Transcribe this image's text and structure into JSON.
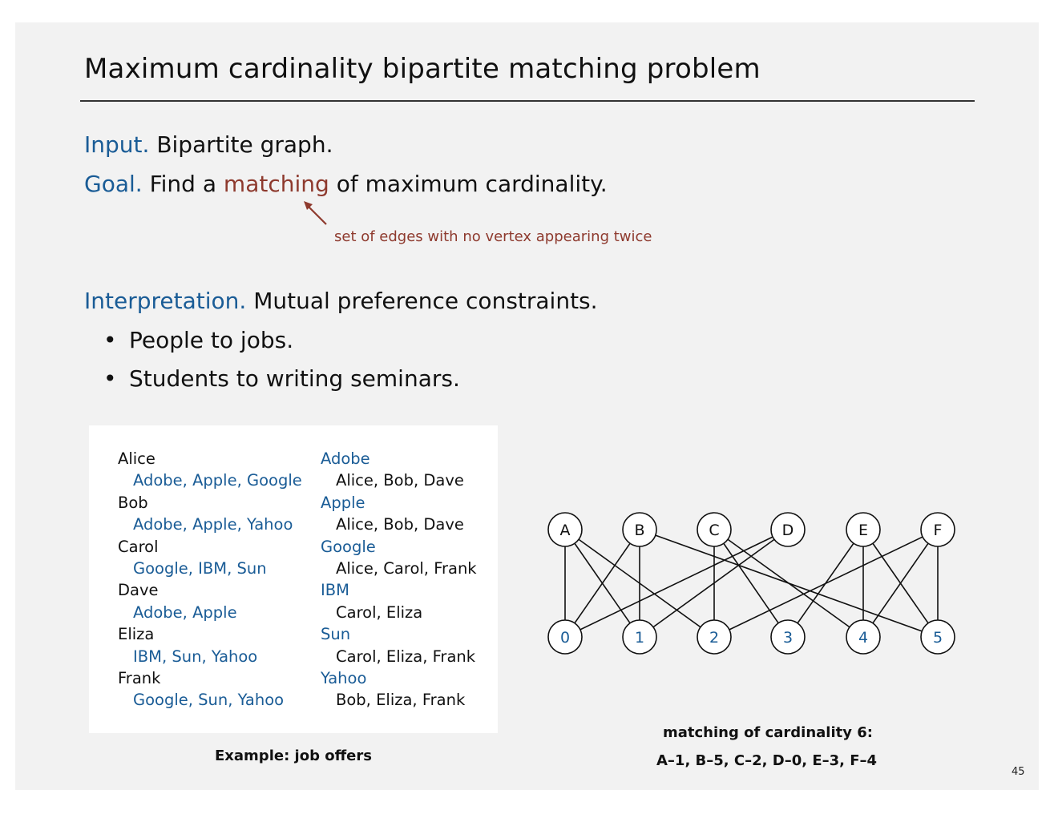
{
  "slide": {
    "title": "Maximum cardinality bipartite matching problem",
    "input_label": "Input.",
    "input_text": "Bipartite graph.",
    "goal_label": "Goal.",
    "goal_pre": "Find a",
    "goal_highlight": "matching",
    "goal_post": "of maximum cardinality.",
    "matching_note": "set of edges with no vertex appearing twice",
    "interp_label": "Interpretation.",
    "interp_text": "Mutual preference constraints.",
    "bullets": [
      "People to jobs.",
      "Students to writing seminars."
    ],
    "page_number": "45"
  },
  "example": {
    "people": [
      {
        "name": "Alice",
        "prefs": "Adobe, Apple, Google"
      },
      {
        "name": "Bob",
        "prefs": "Adobe, Apple, Yahoo"
      },
      {
        "name": "Carol",
        "prefs": "Google, IBM, Sun"
      },
      {
        "name": "Dave",
        "prefs": "Adobe, Apple"
      },
      {
        "name": "Eliza",
        "prefs": "IBM, Sun, Yahoo"
      },
      {
        "name": "Frank",
        "prefs": "Google, Sun, Yahoo"
      }
    ],
    "companies": [
      {
        "name": "Adobe",
        "prefs": "Alice, Bob, Dave"
      },
      {
        "name": "Apple",
        "prefs": "Alice, Bob, Dave"
      },
      {
        "name": "Google",
        "prefs": "Alice, Carol, Frank"
      },
      {
        "name": "IBM",
        "prefs": "Carol, Eliza"
      },
      {
        "name": "Sun",
        "prefs": "Carol, Eliza, Frank"
      },
      {
        "name": "Yahoo",
        "prefs": "Bob, Eliza, Frank"
      }
    ],
    "caption": "Example: job offers"
  },
  "graph": {
    "top_nodes": [
      "A",
      "B",
      "C",
      "D",
      "E",
      "F"
    ],
    "bottom_nodes": [
      "0",
      "1",
      "2",
      "3",
      "4",
      "5"
    ],
    "edges": [
      [
        "A",
        "0"
      ],
      [
        "A",
        "1"
      ],
      [
        "A",
        "2"
      ],
      [
        "B",
        "0"
      ],
      [
        "B",
        "1"
      ],
      [
        "B",
        "5"
      ],
      [
        "C",
        "2"
      ],
      [
        "C",
        "3"
      ],
      [
        "C",
        "4"
      ],
      [
        "D",
        "0"
      ],
      [
        "D",
        "1"
      ],
      [
        "E",
        "3"
      ],
      [
        "E",
        "4"
      ],
      [
        "E",
        "5"
      ],
      [
        "F",
        "2"
      ],
      [
        "F",
        "4"
      ],
      [
        "F",
        "5"
      ]
    ],
    "colors": {
      "top_label": "#111111",
      "bottom_label": "#1a5c96"
    },
    "caption_line1": "matching of cardinality 6:",
    "caption_line2": "A–1, B–5, C–2, D–0, E–3, F–4"
  }
}
